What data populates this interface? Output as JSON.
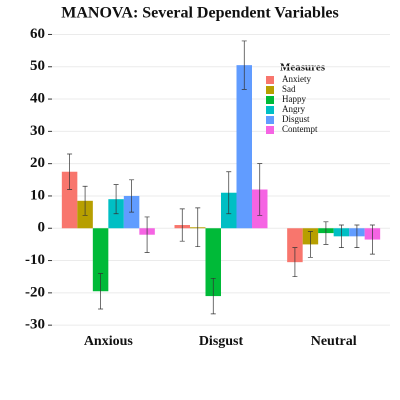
{
  "chart_data": {
    "type": "bar",
    "title": "MANOVA: Several Dependent Variables",
    "categories": [
      "Anxious",
      "Disgust",
      "Neutral"
    ],
    "legend_title": "Measures",
    "series": [
      {
        "name": "Anxiety",
        "color": "#F8766D",
        "values": [
          17.5,
          1,
          -10.5
        ],
        "errors": [
          5.5,
          5,
          4.5
        ]
      },
      {
        "name": "Sad",
        "color": "#B79F00",
        "values": [
          8.5,
          0.3,
          -5
        ],
        "errors": [
          4.5,
          6,
          4
        ]
      },
      {
        "name": "Happy",
        "color": "#00BA38",
        "values": [
          -19.5,
          -21,
          -1.5
        ],
        "errors": [
          5.5,
          5.5,
          3.5
        ]
      },
      {
        "name": "Angry",
        "color": "#00BFC4",
        "values": [
          9,
          11,
          -2.5
        ],
        "errors": [
          4.5,
          6.5,
          3.5
        ]
      },
      {
        "name": "Disgust",
        "color": "#619CFF",
        "values": [
          10,
          50.5,
          -2.5
        ],
        "errors": [
          5,
          7.5,
          3.5
        ]
      },
      {
        "name": "Contempt",
        "color": "#F564E3",
        "values": [
          -2,
          12,
          -3.5
        ],
        "errors": [
          5.5,
          8,
          4.5
        ]
      }
    ],
    "ylim": [
      -31.5,
      62
    ],
    "yticks": [
      -30,
      -20,
      -10,
      0,
      10,
      20,
      30,
      40,
      50,
      60
    ],
    "grid": true
  }
}
